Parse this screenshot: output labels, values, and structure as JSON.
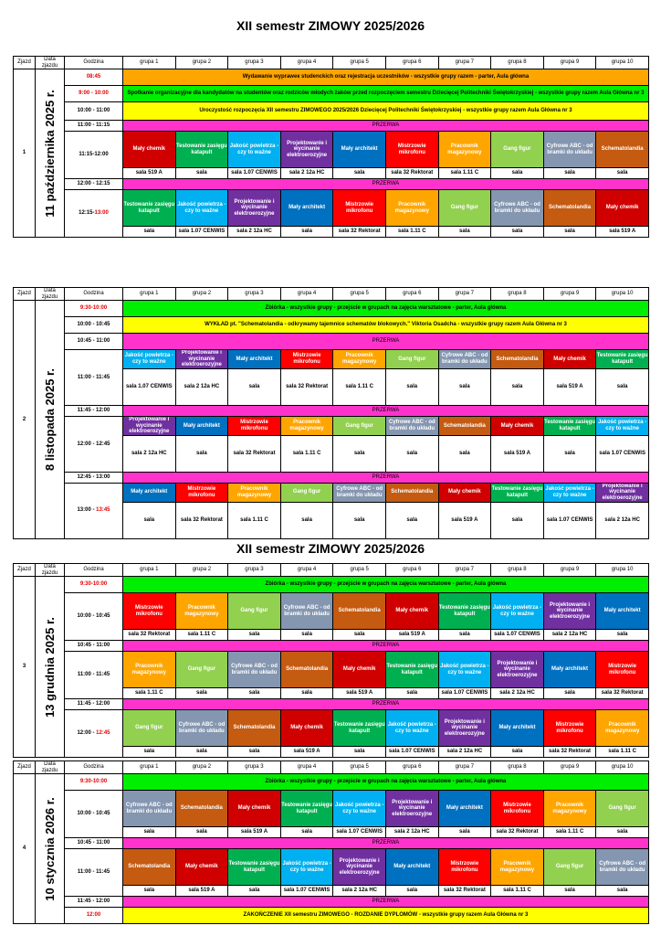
{
  "title": "XII semestr ZIMOWY 2025/2026",
  "title2": "XII semestr ZIMOWY 2025/2026",
  "header": {
    "zjazd": "Zjazd",
    "data": "Data zjazdu",
    "godzina": "Godzina",
    "groups": [
      "grupa 1",
      "grupa 2",
      "grupa 3",
      "grupa 4",
      "grupa 5",
      "grupa 6",
      "grupa 7",
      "grupa 8",
      "grupa 9",
      "grupa 10"
    ]
  },
  "activities": {
    "chemik": "Mały chemik",
    "katapult": "Testowanie zasięgu katapult",
    "powietrze": "Jakość powietrza - czy to ważne",
    "projekt": "Projektowanie i wycinanie elektroerozyjne",
    "architekt": "Mały architekt",
    "mikrofon": "Mistrzowie mikrofonu",
    "magazyn": "Pracownik magazynowy",
    "gang": "Gang figur",
    "cyfrowe": "Cyfrowe ABC - od bramki do układu",
    "schemat": "Schematolandia"
  },
  "rooms": {
    "chemik": "sala 519 A",
    "katapult": "sala",
    "powietrze": "sala 1.07 CENWIS",
    "projekt": "sala 2 12a HC",
    "architekt": "sala",
    "mikrofon": "sala 32 Rektorat",
    "magazyn": "sala 1.11 C",
    "gang": "sala",
    "cyfrowe": "sala",
    "schemat": "sala"
  },
  "colors": {
    "chemik": "#d00000",
    "katapult": "#00b050",
    "powietrze": "#00b0f0",
    "projekt": "#7030a0",
    "architekt": "#0070c0",
    "mikrofon": "#ff0000",
    "magazyn": "#ffa500",
    "gang": "#92d050",
    "cyfrowe": "#8496b0",
    "schemat": "#c55a11",
    "banner_orange": "#ffa500",
    "banner_green": "#00ee00",
    "banner_yellow": "#ffff00",
    "break_pink": "#ff33cc"
  },
  "przerwa": "PRZERWA",
  "zjazdy": [
    {
      "num": "1",
      "date": "11 października 2025 r.",
      "rows": [
        {
          "kind": "banner",
          "time": "08:45",
          "time_red": true,
          "color": "orange",
          "text": "Wydawanie wypraweк studenckich oraz rejestracja uczestników          -  wszystkie grupy razem          - parter, Aula główna"
        },
        {
          "kind": "banner",
          "time": "9:00 - 10:00",
          "time_red": true,
          "color": "green",
          "text": "Spotkanie organizacyjne dla kandydatów na studentów oraz rodziców młodych żaków przed rozpoczęciem semestru Dziecięcej Politechniki Świętokrzyskiej          -  wszystkie grupy razem          Aula Główna nr 3"
        },
        {
          "kind": "banner",
          "time": "10:00 - 11:00",
          "color": "yellow",
          "text": "Uroczystość rozpoczęcia XII semestru ZIMOWEGO 2025/2026   Dziecięcej Politechniki Świętokrzyskiej          -  wszystkie grupy razem          Aula Główna nr 3"
        },
        {
          "kind": "break",
          "time": "11:00 - 11:15"
        },
        {
          "kind": "acts",
          "time": "11:15-12:00",
          "acts": [
            "chemik",
            "katapult",
            "powietrze",
            "projekt",
            "architekt",
            "mikrofon",
            "magazyn",
            "gang",
            "cyfrowe",
            "schemat"
          ]
        },
        {
          "kind": "break",
          "time": "12:00 - 12:15"
        },
        {
          "kind": "acts",
          "time": "12:15-",
          "time_red_part": "13:00",
          "acts": [
            "katapult",
            "powietrze",
            "projekt",
            "architekt",
            "mikrofon",
            "magazyn",
            "gang",
            "cyfrowe",
            "schemat",
            "chemik"
          ]
        }
      ]
    },
    {
      "num": "2",
      "date": "8 listopada 2025 r.",
      "rows": [
        {
          "kind": "banner",
          "time": "9:30-10:00",
          "time_red": true,
          "color": "green",
          "text": "Zbiórka -  wszystkie grupy  - przejście w grupach na  zajęcia warsztatowe                    - parter, Aula główna"
        },
        {
          "kind": "banner",
          "time": "10:00 - 10:45",
          "color": "yellow",
          "text": "WYKŁAD  pt.  \"Schematolandia - odkrywamy tajemnice schematów blokowych.\" Viktoria Osadcha          -  wszystkie grupy razem          Aula Główna nr 3"
        },
        {
          "kind": "break",
          "time": "10:45 - 11:00"
        },
        {
          "kind": "acts",
          "time": "11:00 - 11:45",
          "acts": [
            "powietrze",
            "projekt",
            "architekt",
            "mikrofon",
            "magazyn",
            "gang",
            "cyfrowe",
            "schemat",
            "chemik",
            "katapult"
          ]
        },
        {
          "kind": "break",
          "time": "11:45 - 12:00"
        },
        {
          "kind": "acts",
          "time": "12:00 - 12:45",
          "acts": [
            "projekt",
            "architekt",
            "mikrofon",
            "magazyn",
            "gang",
            "cyfrowe",
            "schemat",
            "chemik",
            "katapult",
            "powietrze"
          ]
        },
        {
          "kind": "break",
          "time": "12:45 - 13:00"
        },
        {
          "kind": "acts",
          "time": "13:00 - ",
          "time_red_part": "13:45",
          "acts": [
            "architekt",
            "mikrofon",
            "magazyn",
            "gang",
            "cyfrowe",
            "schemat",
            "chemik",
            "katapult",
            "powietrze",
            "projekt"
          ]
        }
      ]
    },
    {
      "num": "3",
      "date": "13 grudnia 2025 r.",
      "rows": [
        {
          "kind": "banner",
          "time": "9:30-10:00",
          "time_red": true,
          "color": "green",
          "text": "Zbiórka -  wszystkie grupy  - przejście w grupach na  zajęcia warsztatowe                    - parter, Aula główna"
        },
        {
          "kind": "acts",
          "time": "10:00 - 10:45",
          "acts": [
            "mikrofon",
            "magazyn",
            "gang",
            "cyfrowe",
            "schemat",
            "chemik",
            "katapult",
            "powietrze",
            "projekt",
            "architekt"
          ]
        },
        {
          "kind": "break",
          "time": "10:45 - 11:00"
        },
        {
          "kind": "acts",
          "time": "11:00 - 11:45",
          "acts": [
            "magazyn",
            "gang",
            "cyfrowe",
            "schemat",
            "chemik",
            "katapult",
            "powietrze",
            "projekt",
            "architekt",
            "mikrofon"
          ]
        },
        {
          "kind": "break",
          "time": "11:45 - 12:00"
        },
        {
          "kind": "acts",
          "time": "12:00 - ",
          "time_red_part": "12:45",
          "acts": [
            "gang",
            "cyfrowe",
            "schemat",
            "chemik",
            "katapult",
            "powietrze",
            "projekt",
            "architekt",
            "mikrofon",
            "magazyn"
          ]
        }
      ]
    },
    {
      "num": "4",
      "date": "10 stycznia 2026 r.",
      "rows": [
        {
          "kind": "banner",
          "time": "9:30-10:00",
          "time_red": true,
          "color": "green",
          "text": "Zbiórka -  wszystkie grupy  - przejście w grupach na  zajęcia warsztatowe                    - parter, Aula główna"
        },
        {
          "kind": "acts",
          "time": "10:00 - 10:45",
          "acts": [
            "cyfrowe",
            "schemat",
            "chemik",
            "katapult",
            "powietrze",
            "projekt",
            "architekt",
            "mikrofon",
            "magazyn",
            "gang"
          ]
        },
        {
          "kind": "break",
          "time": "10:45 - 11:00"
        },
        {
          "kind": "acts",
          "time": "11:00 - 11:45",
          "acts": [
            "schemat",
            "chemik",
            "katapult",
            "powietrze",
            "projekt",
            "architekt",
            "mikrofon",
            "magazyn",
            "gang",
            "cyfrowe"
          ]
        },
        {
          "kind": "break",
          "time": "11:45 - 12:00"
        },
        {
          "kind": "banner",
          "time": "12:00",
          "time_red": true,
          "color": "yellow",
          "text": "ZAKOŃCZENIE XII semestru ZIMOWEGO - ROZDANIE DYPLOMÓW          -  wszystkie grupy razem    Aula Główna nr 3"
        }
      ]
    }
  ]
}
